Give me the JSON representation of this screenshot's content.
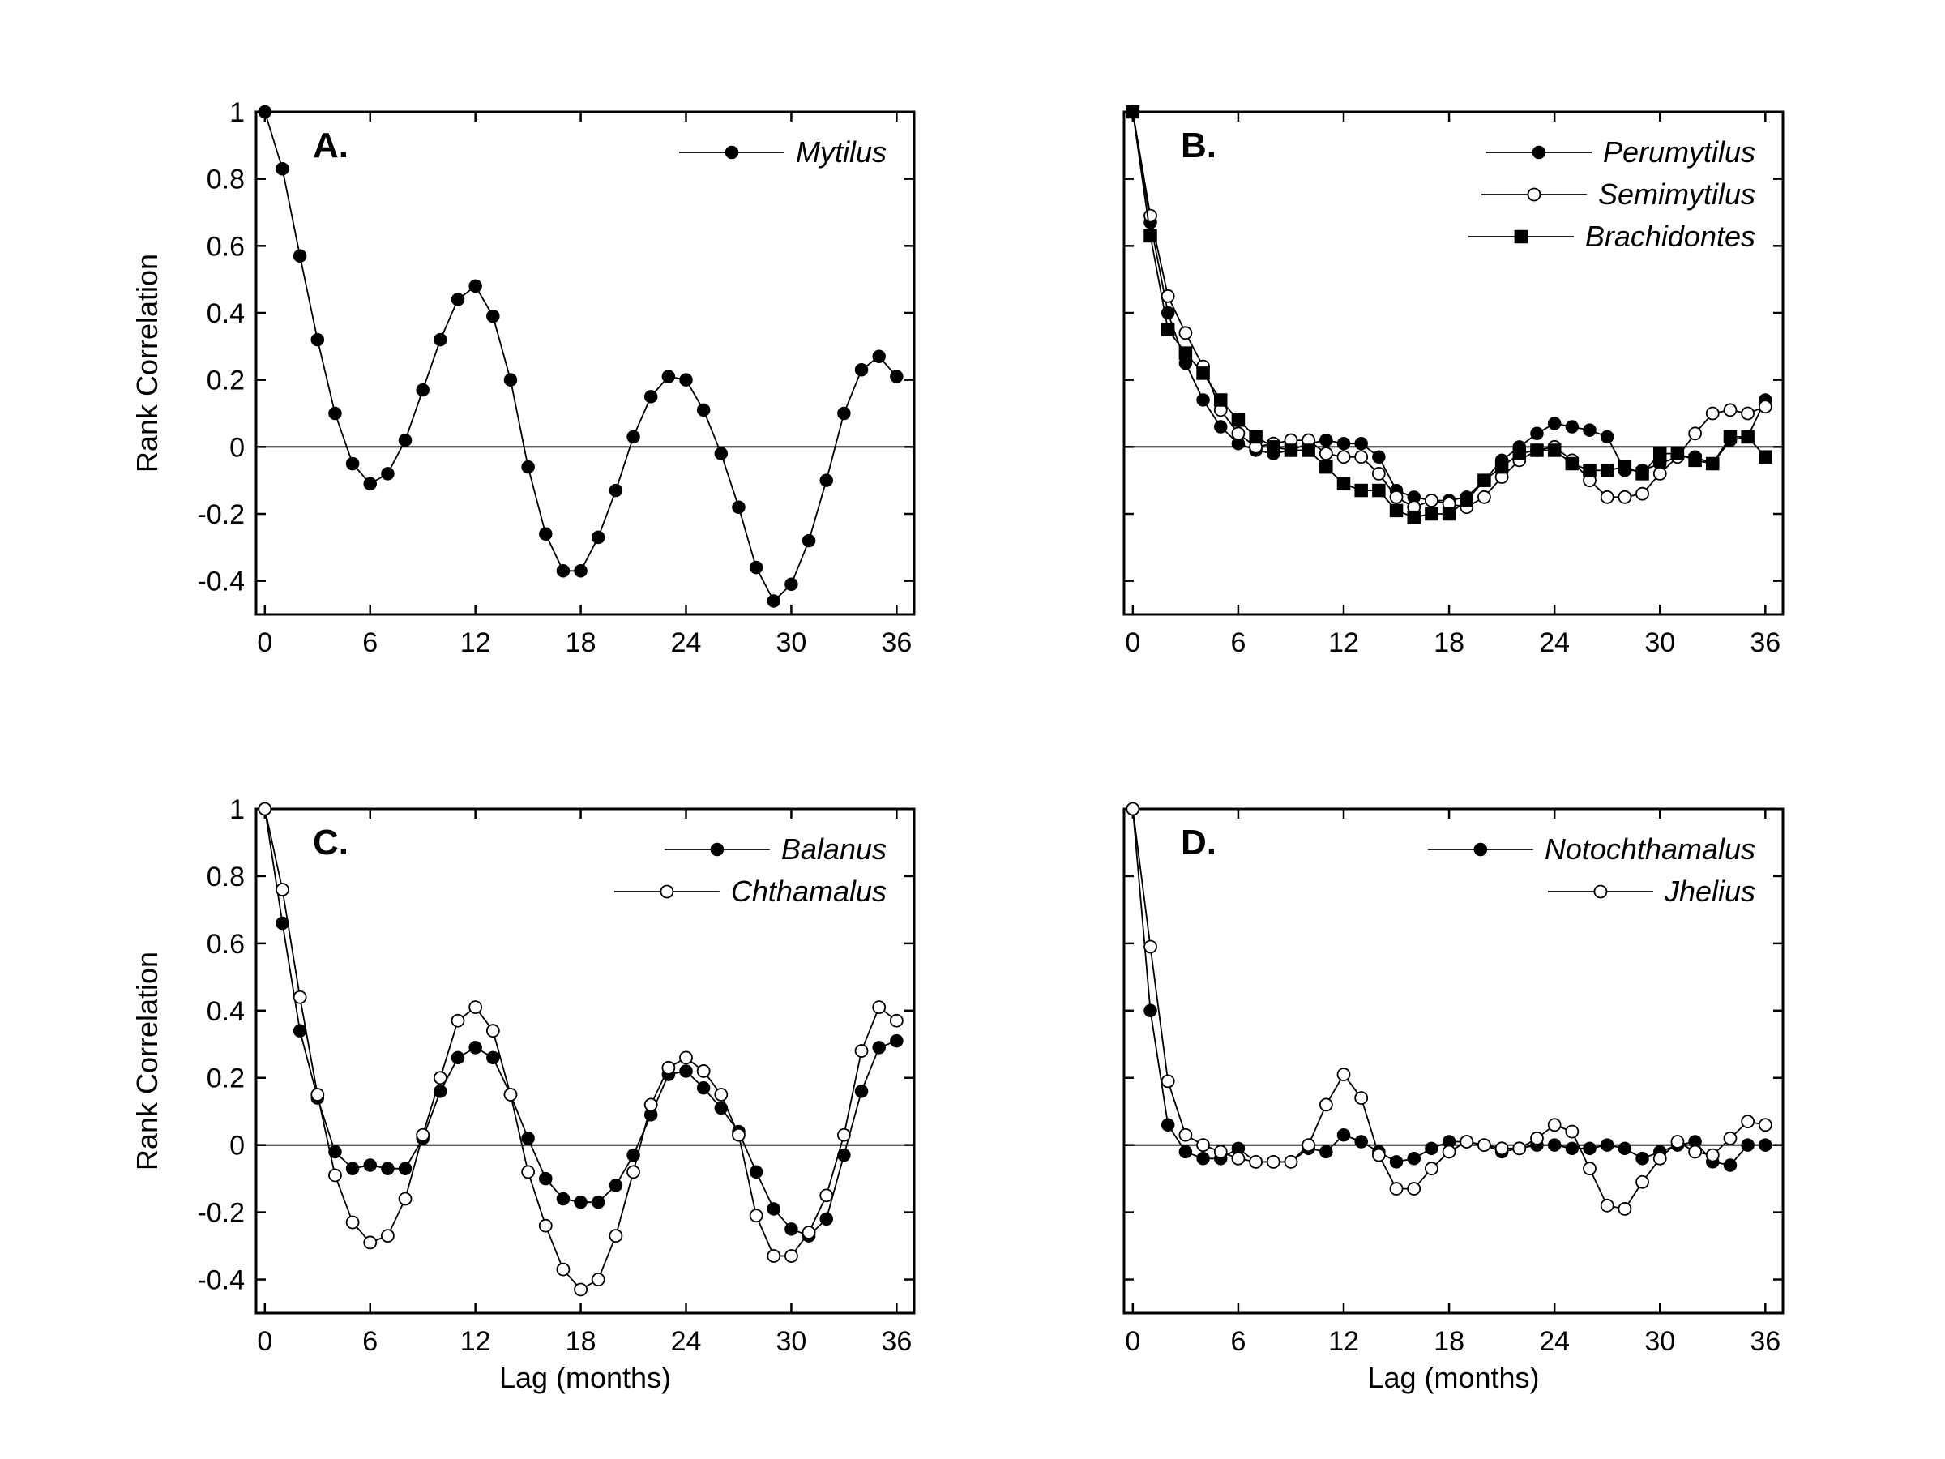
{
  "chart_data": [
    {
      "type": "line",
      "panel_label": "A.",
      "xlabel": "",
      "ylabel": "Rank Correlation",
      "xlim": [
        -0.5,
        37
      ],
      "ylim": [
        -0.5,
        1
      ],
      "xticks": [
        0,
        6,
        12,
        18,
        24,
        30,
        36
      ],
      "xtick_labels": [
        "0",
        "6",
        "12",
        "18",
        "24",
        "30",
        "36"
      ],
      "yticks": [
        -0.4,
        -0.2,
        0,
        0.2,
        0.4,
        0.6,
        0.8,
        1
      ],
      "ytick_labels": [
        "-0.4",
        "-0.2",
        "0",
        "0.2",
        "0.4",
        "0.6",
        "0.8",
        "1"
      ],
      "show_ytick_labels": true,
      "legend_position": "top-right",
      "zero_line": true,
      "x": [
        0,
        1,
        2,
        3,
        4,
        5,
        6,
        7,
        8,
        9,
        10,
        11,
        12,
        13,
        14,
        15,
        16,
        17,
        18,
        19,
        20,
        21,
        22,
        23,
        24,
        25,
        26,
        27,
        28,
        29,
        30,
        31,
        32,
        33,
        34,
        35,
        36
      ],
      "series": [
        {
          "name": "Mytilus",
          "marker": "filled-circle",
          "values": [
            1,
            0.83,
            0.57,
            0.32,
            0.1,
            -0.05,
            -0.11,
            -0.08,
            0.02,
            0.17,
            0.32,
            0.44,
            0.48,
            0.39,
            0.2,
            -0.06,
            -0.26,
            -0.37,
            -0.37,
            -0.27,
            -0.13,
            0.03,
            0.15,
            0.21,
            0.2,
            0.11,
            -0.02,
            -0.18,
            -0.36,
            -0.46,
            -0.41,
            -0.28,
            -0.1,
            0.1,
            0.23,
            0.27,
            0.21
          ]
        }
      ]
    },
    {
      "type": "line",
      "panel_label": "B.",
      "xlabel": "",
      "ylabel": "",
      "xlim": [
        -0.5,
        37
      ],
      "ylim": [
        -0.5,
        1
      ],
      "xticks": [
        0,
        6,
        12,
        18,
        24,
        30,
        36
      ],
      "xtick_labels": [
        "0",
        "6",
        "12",
        "18",
        "24",
        "30",
        "36"
      ],
      "yticks": [
        -0.4,
        -0.2,
        0,
        0.2,
        0.4,
        0.6,
        0.8,
        1
      ],
      "ytick_labels": [],
      "show_ytick_labels": false,
      "legend_position": "top-right",
      "zero_line": true,
      "x": [
        0,
        1,
        2,
        3,
        4,
        5,
        6,
        7,
        8,
        9,
        10,
        11,
        12,
        13,
        14,
        15,
        16,
        17,
        18,
        19,
        20,
        21,
        22,
        23,
        24,
        25,
        26,
        27,
        28,
        29,
        30,
        31,
        32,
        33,
        34,
        35,
        36
      ],
      "series": [
        {
          "name": "Perumytilus",
          "marker": "filled-circle",
          "values": [
            1,
            0.67,
            0.4,
            0.25,
            0.14,
            0.06,
            0.01,
            -0.01,
            -0.02,
            -0.01,
            0.01,
            0.02,
            0.01,
            0.01,
            -0.03,
            -0.13,
            -0.15,
            -0.16,
            -0.16,
            -0.15,
            -0.1,
            -0.04,
            0.0,
            0.04,
            0.07,
            0.06,
            0.05,
            0.03,
            -0.07,
            -0.07,
            -0.05,
            -0.03,
            -0.03,
            -0.05,
            0.02,
            0.03,
            0.14
          ]
        },
        {
          "name": "Semimytilus",
          "marker": "open-circle",
          "values": [
            1,
            0.69,
            0.45,
            0.34,
            0.24,
            0.11,
            0.04,
            0.0,
            0.01,
            0.02,
            0.02,
            -0.02,
            -0.03,
            -0.03,
            -0.08,
            -0.15,
            -0.18,
            -0.16,
            -0.17,
            -0.18,
            -0.15,
            -0.09,
            -0.04,
            -0.01,
            0.0,
            -0.04,
            -0.1,
            -0.15,
            -0.15,
            -0.14,
            -0.08,
            -0.03,
            0.04,
            0.1,
            0.11,
            0.1,
            0.12
          ]
        },
        {
          "name": "Brachidontes",
          "marker": "filled-square",
          "values": [
            1,
            0.63,
            0.35,
            0.28,
            0.22,
            0.14,
            0.08,
            0.03,
            0.0,
            -0.01,
            -0.01,
            -0.06,
            -0.11,
            -0.13,
            -0.13,
            -0.19,
            -0.21,
            -0.2,
            -0.2,
            -0.16,
            -0.1,
            -0.06,
            -0.02,
            -0.01,
            -0.01,
            -0.05,
            -0.07,
            -0.07,
            -0.06,
            -0.08,
            -0.02,
            -0.02,
            -0.04,
            -0.05,
            0.03,
            0.03,
            -0.03
          ]
        }
      ]
    },
    {
      "type": "line",
      "panel_label": "C.",
      "xlabel": "Lag (months)",
      "ylabel": "Rank Correlation",
      "xlim": [
        -0.5,
        37
      ],
      "ylim": [
        -0.5,
        1
      ],
      "xticks": [
        0,
        6,
        12,
        18,
        24,
        30,
        36
      ],
      "xtick_labels": [
        "0",
        "6",
        "12",
        "18",
        "24",
        "30",
        "36"
      ],
      "yticks": [
        -0.4,
        -0.2,
        0,
        0.2,
        0.4,
        0.6,
        0.8,
        1
      ],
      "ytick_labels": [
        "-0.4",
        "-0.2",
        "0",
        "0.2",
        "0.4",
        "0.6",
        "0.8",
        "1"
      ],
      "show_ytick_labels": true,
      "legend_position": "top-right",
      "zero_line": true,
      "x": [
        0,
        1,
        2,
        3,
        4,
        5,
        6,
        7,
        8,
        9,
        10,
        11,
        12,
        13,
        14,
        15,
        16,
        17,
        18,
        19,
        20,
        21,
        22,
        23,
        24,
        25,
        26,
        27,
        28,
        29,
        30,
        31,
        32,
        33,
        34,
        35,
        36
      ],
      "series": [
        {
          "name": "Balanus",
          "marker": "filled-circle",
          "values": [
            1,
            0.66,
            0.34,
            0.14,
            -0.02,
            -0.07,
            -0.06,
            -0.07,
            -0.07,
            0.02,
            0.16,
            0.26,
            0.29,
            0.26,
            0.15,
            0.02,
            -0.1,
            -0.16,
            -0.17,
            -0.17,
            -0.12,
            -0.03,
            0.09,
            0.21,
            0.22,
            0.17,
            0.11,
            0.04,
            -0.08,
            -0.19,
            -0.25,
            -0.27,
            -0.22,
            -0.03,
            0.16,
            0.29,
            0.31
          ]
        },
        {
          "name": "Chthamalus",
          "marker": "open-circle",
          "values": [
            1,
            0.76,
            0.44,
            0.15,
            -0.09,
            -0.23,
            -0.29,
            -0.27,
            -0.16,
            0.03,
            0.2,
            0.37,
            0.41,
            0.34,
            0.15,
            -0.08,
            -0.24,
            -0.37,
            -0.43,
            -0.4,
            -0.27,
            -0.08,
            0.12,
            0.23,
            0.26,
            0.22,
            0.15,
            0.03,
            -0.21,
            -0.33,
            -0.33,
            -0.26,
            -0.15,
            0.03,
            0.28,
            0.41,
            0.37
          ]
        }
      ]
    },
    {
      "type": "line",
      "panel_label": "D.",
      "xlabel": "Lag (months)",
      "ylabel": "",
      "xlim": [
        -0.5,
        37
      ],
      "ylim": [
        -0.5,
        1
      ],
      "xticks": [
        0,
        6,
        12,
        18,
        24,
        30,
        36
      ],
      "xtick_labels": [
        "0",
        "6",
        "12",
        "18",
        "24",
        "30",
        "36"
      ],
      "yticks": [
        -0.4,
        -0.2,
        0,
        0.2,
        0.4,
        0.6,
        0.8,
        1
      ],
      "ytick_labels": [],
      "show_ytick_labels": false,
      "legend_position": "top-right",
      "zero_line": true,
      "x": [
        0,
        1,
        2,
        3,
        4,
        5,
        6,
        7,
        8,
        9,
        10,
        11,
        12,
        13,
        14,
        15,
        16,
        17,
        18,
        19,
        20,
        21,
        22,
        23,
        24,
        25,
        26,
        27,
        28,
        29,
        30,
        31,
        32,
        33,
        34,
        35,
        36
      ],
      "series": [
        {
          "name": "Notochthamalus",
          "marker": "filled-circle",
          "values": [
            1,
            0.4,
            0.06,
            -0.02,
            -0.04,
            -0.04,
            -0.01,
            -0.05,
            -0.05,
            -0.05,
            -0.01,
            -0.02,
            0.03,
            0.01,
            -0.02,
            -0.05,
            -0.04,
            -0.01,
            0.01,
            0.01,
            0.0,
            -0.02,
            -0.01,
            0.0,
            0.0,
            -0.01,
            -0.01,
            0.0,
            -0.01,
            -0.04,
            -0.02,
            0.0,
            0.01,
            -0.05,
            -0.06,
            0.0,
            0.0
          ]
        },
        {
          "name": "Jhelius",
          "marker": "open-circle",
          "values": [
            1,
            0.59,
            0.19,
            0.03,
            0.0,
            -0.02,
            -0.04,
            -0.05,
            -0.05,
            -0.05,
            0.0,
            0.12,
            0.21,
            0.14,
            -0.03,
            -0.13,
            -0.13,
            -0.07,
            -0.02,
            0.01,
            0.0,
            -0.01,
            -0.01,
            0.02,
            0.06,
            0.04,
            -0.07,
            -0.18,
            -0.19,
            -0.11,
            -0.04,
            0.01,
            -0.02,
            -0.03,
            0.02,
            0.07,
            0.06
          ]
        }
      ]
    }
  ]
}
